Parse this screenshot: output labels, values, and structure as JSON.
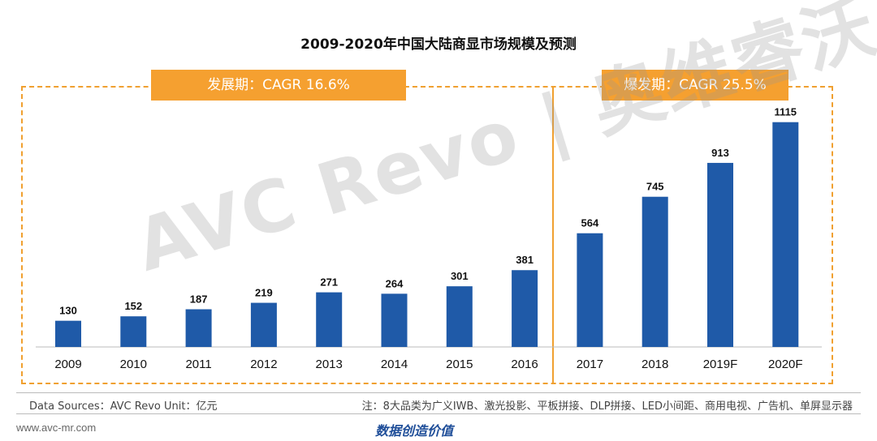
{
  "chart_data": {
    "type": "bar",
    "title": "2009-2020年中国大陆商显市场规模及预测",
    "categories": [
      "2009",
      "2010",
      "2011",
      "2012",
      "2013",
      "2014",
      "2015",
      "2016",
      "2017",
      "2018",
      "2019F",
      "2020F"
    ],
    "values": [
      130,
      152,
      187,
      219,
      271,
      264,
      301,
      381,
      564,
      745,
      913,
      1115
    ],
    "ylim": [
      0,
      1300
    ],
    "bar_color": "#1f5aa8",
    "grid": false,
    "phases": [
      {
        "label": "发展期：CAGR 16.6%"
      },
      {
        "label": "爆发期：CAGR 25.5%"
      }
    ]
  },
  "watermark": "AVC Revo | 奥维睿沃",
  "footer": {
    "source": "Data Sources：AVC Revo    Unit：亿元",
    "note": "注：8大品类为广义IWB、激光投影、平板拼接、DLP拼接、LED小间距、商用电视、广告机、单屏显示器",
    "website": "www.avc-mr.com",
    "slogan": "数据创造价值"
  },
  "colors": {
    "accent": "#f5a030",
    "bar": "#1f5aa8"
  }
}
